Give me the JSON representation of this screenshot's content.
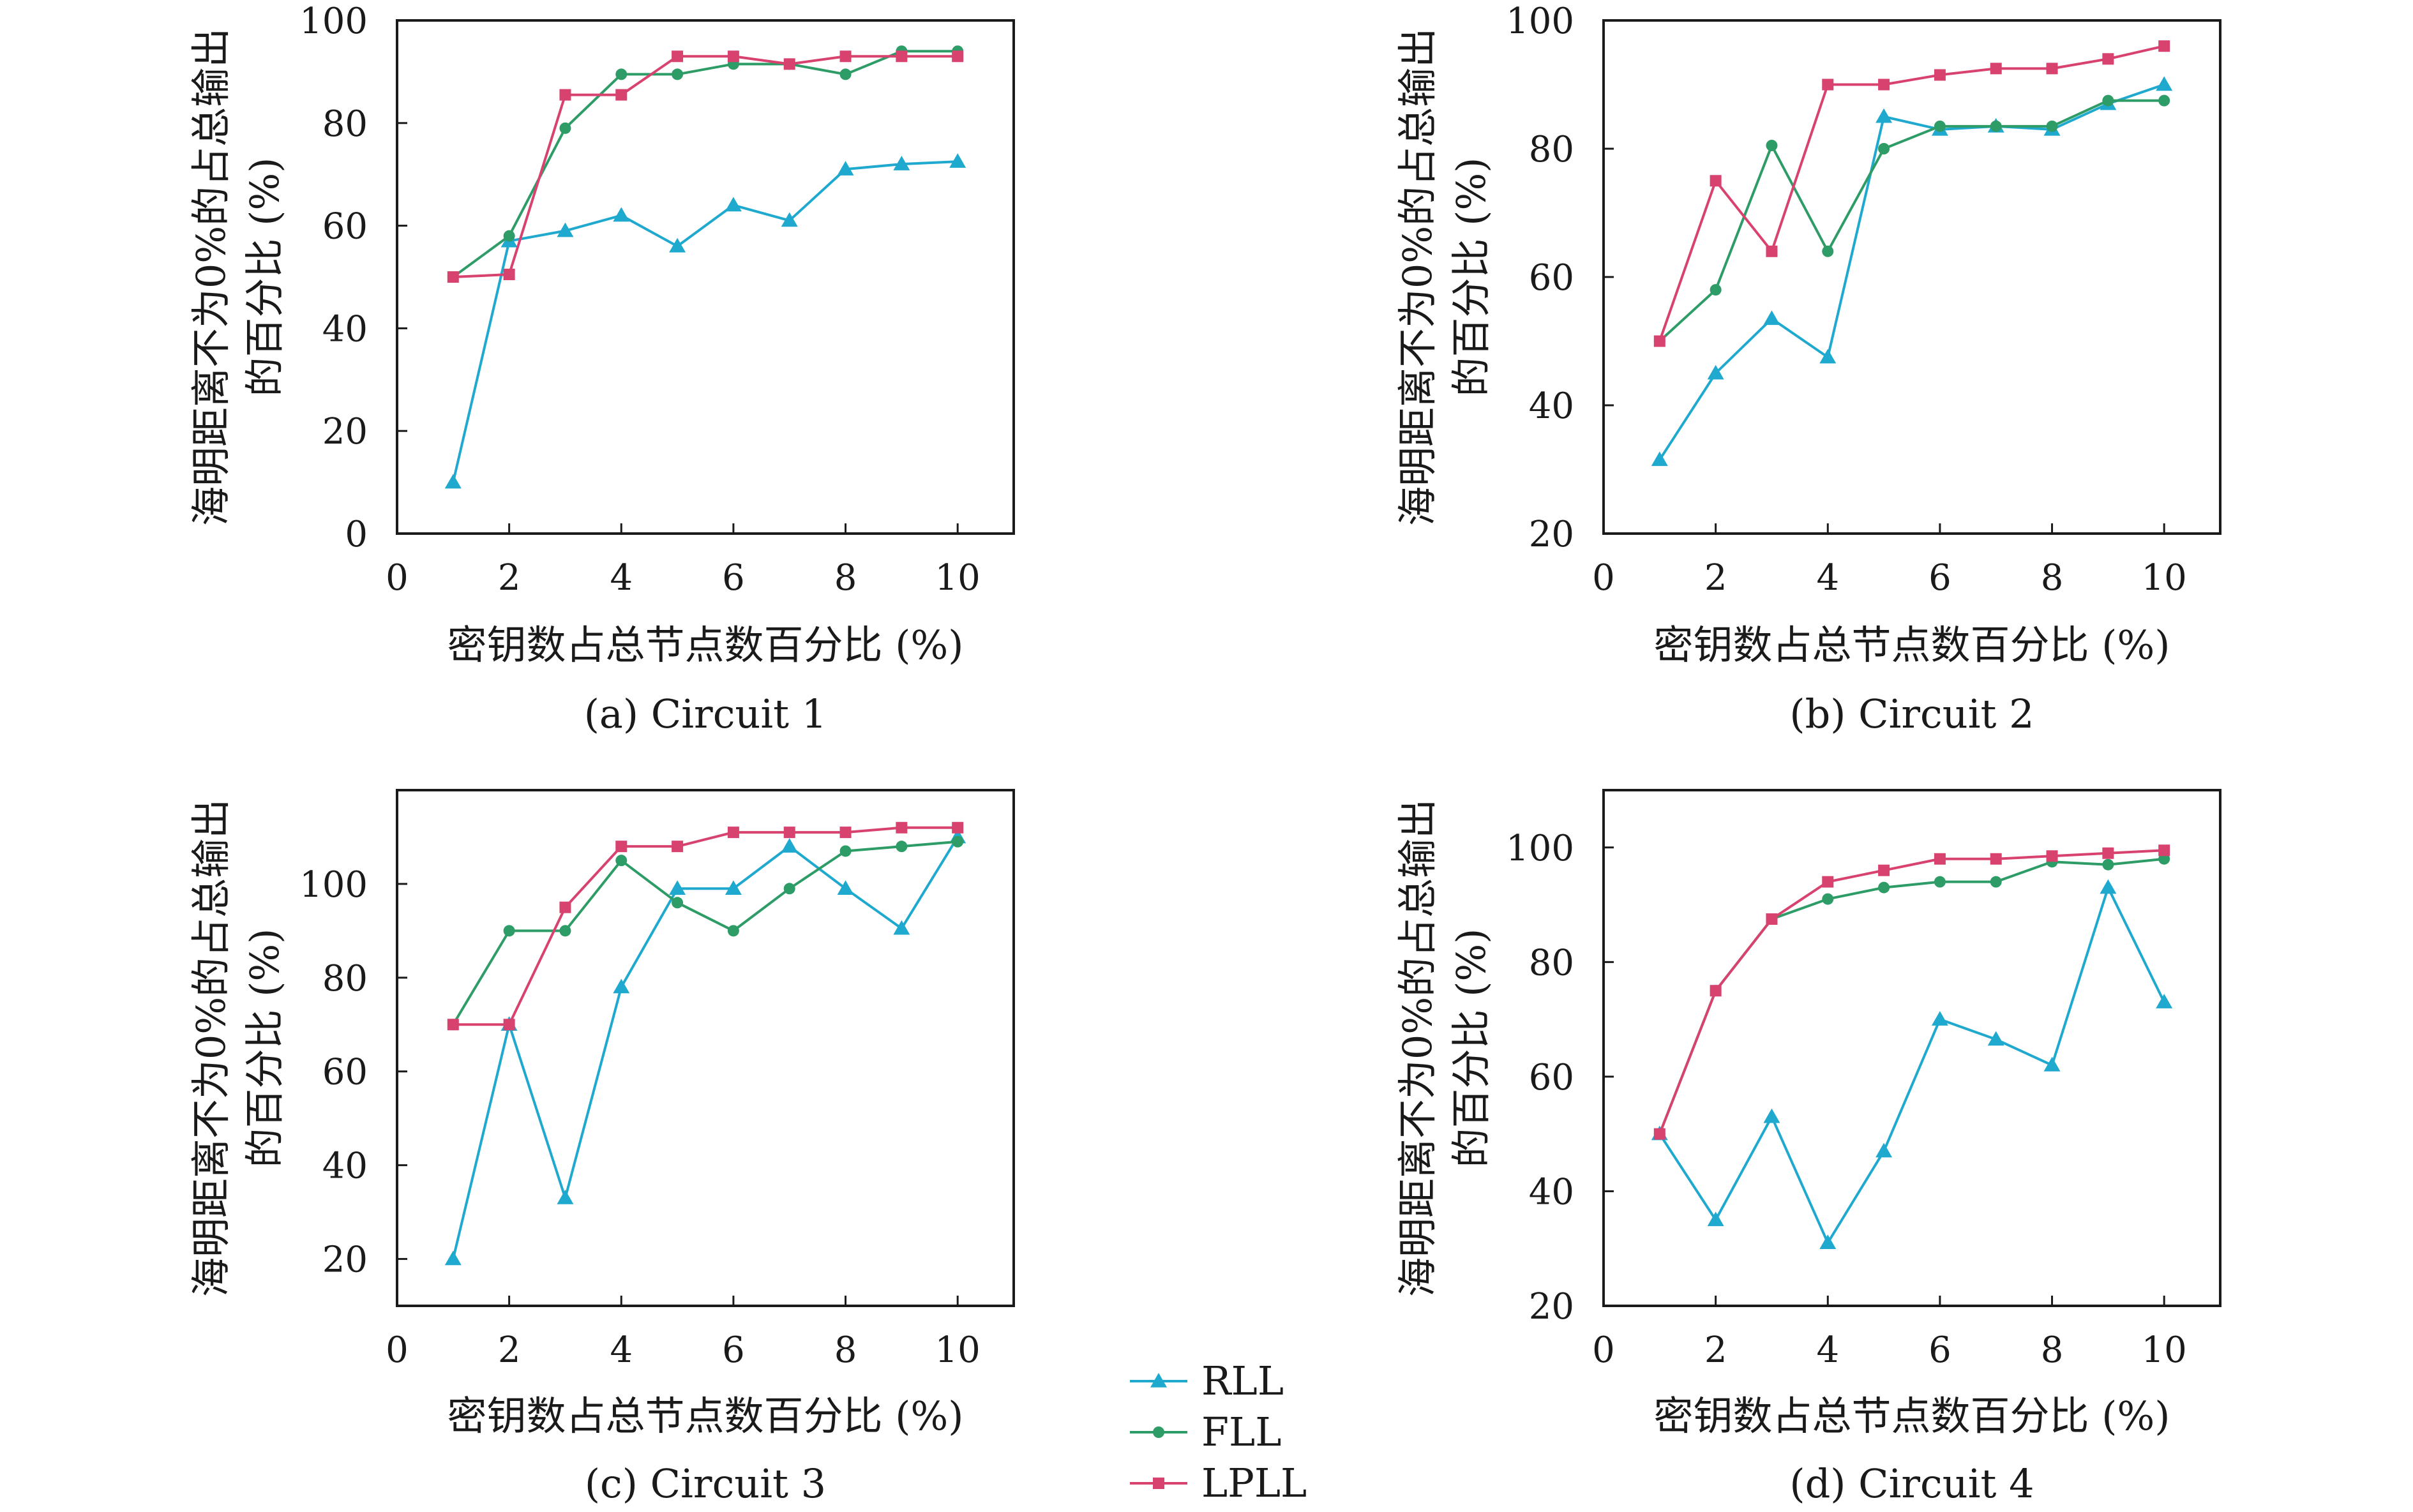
{
  "figure": {
    "legend": {
      "items": [
        {
          "name": "RLL",
          "color": "#1fa9cf",
          "marker": "triangle"
        },
        {
          "name": "FLL",
          "color": "#2e9c67",
          "marker": "circle"
        },
        {
          "name": "LPLL",
          "color": "#d8426f",
          "marker": "square"
        }
      ]
    }
  },
  "chart_data": [
    {
      "type": "line",
      "caption": "(a) Circuit 1",
      "xlabel": "密钥数占总节点数百分比 (%)",
      "ylabel_line1": "海明距离不为0%的占总输出",
      "ylabel_line2": "的百分比 (%)",
      "xlim": [
        0,
        11
      ],
      "ylim": [
        0,
        100
      ],
      "xticks": [
        0,
        2,
        4,
        6,
        8,
        10
      ],
      "yticks": [
        0,
        20,
        40,
        60,
        80,
        100
      ],
      "x": [
        1,
        2,
        3,
        4,
        5,
        6,
        7,
        8,
        9,
        10
      ],
      "series": [
        {
          "name": "RLL",
          "values": [
            10,
            57,
            59,
            62,
            56,
            64,
            61,
            71,
            72,
            72.5
          ]
        },
        {
          "name": "FLL",
          "values": [
            50,
            58,
            79,
            89.5,
            89.5,
            91.5,
            91.5,
            89.5,
            94,
            94
          ]
        },
        {
          "name": "LPLL",
          "values": [
            50,
            50.5,
            85.5,
            85.5,
            93,
            93,
            91.5,
            93,
            93,
            93
          ]
        }
      ]
    },
    {
      "type": "line",
      "caption": "(b) Circuit 2",
      "xlabel": "密钥数占总节点数百分比 (%)",
      "ylabel_line1": "海明距离不为0%的占总输出",
      "ylabel_line2": "的百分比 (%)",
      "xlim": [
        0,
        11
      ],
      "ylim": [
        20,
        100
      ],
      "xticks": [
        0,
        2,
        4,
        6,
        8,
        10
      ],
      "yticks": [
        20,
        40,
        60,
        80,
        100
      ],
      "x": [
        1,
        2,
        3,
        4,
        5,
        6,
        7,
        8,
        9,
        10
      ],
      "series": [
        {
          "name": "RLL",
          "values": [
            31.5,
            45,
            53.5,
            47.5,
            85,
            83,
            83.5,
            83,
            87,
            90
          ]
        },
        {
          "name": "FLL",
          "values": [
            50,
            58,
            80.5,
            64,
            80,
            83.5,
            83.5,
            83.5,
            87.5,
            87.5
          ]
        },
        {
          "name": "LPLL",
          "values": [
            50,
            75,
            64,
            90,
            90,
            91.5,
            92.5,
            92.5,
            94,
            96
          ]
        }
      ]
    },
    {
      "type": "line",
      "caption": "(c) Circuit 3",
      "xlabel": "密钥数占总节点数百分比 (%)",
      "ylabel_line1": "海明距离不为0%的占总输出",
      "ylabel_line2": "的百分比 (%)",
      "xlim": [
        0,
        11
      ],
      "ylim": [
        10,
        120
      ],
      "xticks": [
        0,
        2,
        4,
        6,
        8,
        10
      ],
      "yticks": [
        20,
        40,
        60,
        80,
        100
      ],
      "x": [
        1,
        2,
        3,
        4,
        5,
        6,
        7,
        8,
        9,
        10
      ],
      "series": [
        {
          "name": "RLL",
          "values": [
            20,
            70,
            33,
            78,
            99,
            99,
            108,
            99,
            90.5,
            110
          ]
        },
        {
          "name": "FLL",
          "values": [
            70,
            90,
            90,
            105,
            96,
            90,
            99,
            107,
            108,
            109
          ]
        },
        {
          "name": "LPLL",
          "values": [
            70,
            70,
            95,
            108,
            108,
            111,
            111,
            111,
            112,
            112
          ]
        }
      ]
    },
    {
      "type": "line",
      "caption": "(d) Circuit 4",
      "xlabel": "密钥数占总节点数百分比 (%)",
      "ylabel_line1": "海明距离不为0%的占总输出",
      "ylabel_line2": "的百分比 (%)",
      "xlim": [
        0,
        11
      ],
      "ylim": [
        20,
        110
      ],
      "xticks": [
        0,
        2,
        4,
        6,
        8,
        10
      ],
      "yticks": [
        20,
        40,
        60,
        80,
        100
      ],
      "x": [
        1,
        2,
        3,
        4,
        5,
        6,
        7,
        8,
        9,
        10
      ],
      "series": [
        {
          "name": "RLL",
          "values": [
            50,
            35,
            53,
            31,
            47,
            70,
            66.5,
            62,
            93,
            73
          ]
        },
        {
          "name": "FLL",
          "values": [
            50,
            75,
            87.5,
            91,
            93,
            94,
            94,
            97.5,
            97,
            98
          ]
        },
        {
          "name": "LPLL",
          "values": [
            50,
            75,
            87.5,
            94,
            96,
            98,
            98,
            98.5,
            99,
            99.5
          ]
        }
      ]
    }
  ]
}
